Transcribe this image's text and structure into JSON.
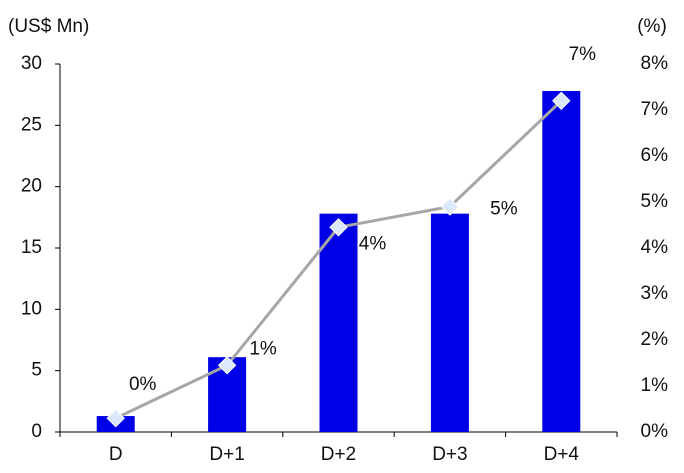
{
  "chart_data": {
    "type": "bar",
    "y_label": "(US$ Mn)",
    "y2_label": "(%)",
    "categories": [
      "D",
      "D+1",
      "D+2",
      "D+3",
      "D+4"
    ],
    "series": [
      {
        "type": "bar",
        "color": "#0000e6",
        "values": [
          1.3,
          6.1,
          17.8,
          17.8,
          27.8
        ]
      },
      {
        "type": "line",
        "axis": "y2",
        "color": "#a6a6a6",
        "marker_color": "#dbe8fb",
        "values": [
          0.3,
          1.45,
          4.45,
          4.9,
          7.2
        ],
        "value_labels": [
          "0%",
          "1%",
          "4%",
          "5%",
          "7%"
        ]
      }
    ],
    "ylim": [
      0,
      30
    ],
    "yticks": [
      0,
      5,
      10,
      15,
      20,
      25,
      30
    ],
    "y2lim": [
      0,
      8
    ],
    "y2ticks": [
      {
        "value": 0,
        "label": "0%"
      },
      {
        "value": 1,
        "label": "1%"
      },
      {
        "value": 2,
        "label": "2%"
      },
      {
        "value": 3,
        "label": "3%"
      },
      {
        "value": 4,
        "label": "4%"
      },
      {
        "value": 5,
        "label": "5%"
      },
      {
        "value": 6,
        "label": "6%"
      },
      {
        "value": 7,
        "label": "7%"
      },
      {
        "value": 8,
        "label": "8%"
      }
    ]
  }
}
